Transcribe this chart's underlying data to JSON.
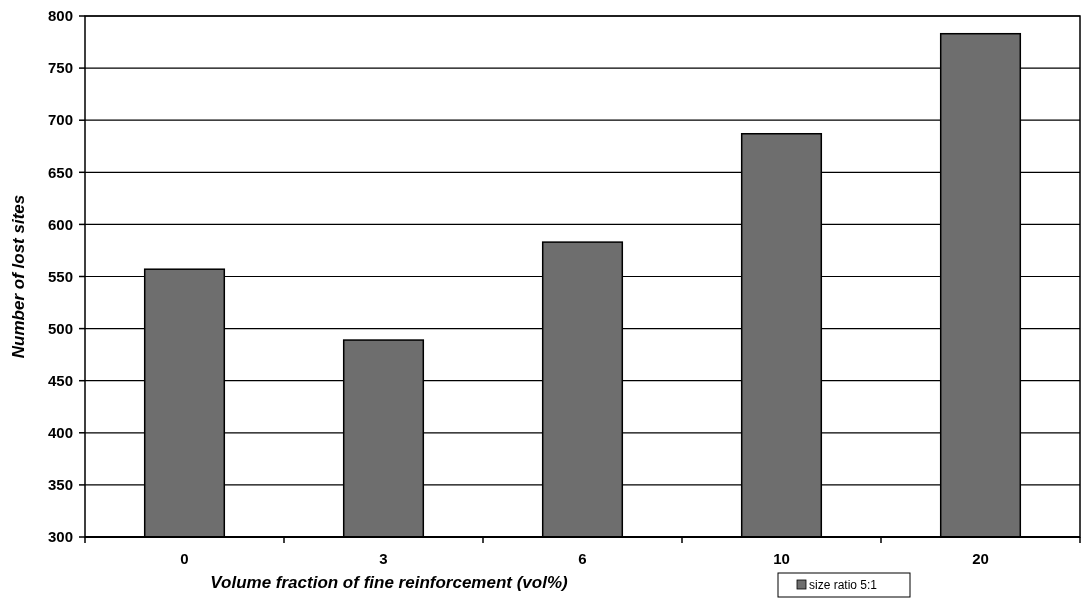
{
  "chart_data": {
    "type": "bar",
    "xlabel": "Volume fraction of fine reinforcement (vol%)",
    "ylabel": "Number of lost sites",
    "categories": [
      "0",
      "3",
      "6",
      "10",
      "20"
    ],
    "series": [
      {
        "name": "size ratio 5:1",
        "color": "#6e6e6e",
        "values": [
          557,
          489,
          583,
          687,
          783
        ]
      }
    ],
    "ylim": [
      300,
      800
    ],
    "yticks": [
      300,
      350,
      400,
      450,
      500,
      550,
      600,
      650,
      700,
      750,
      800
    ],
    "grid": "y",
    "legend": "bottom"
  }
}
